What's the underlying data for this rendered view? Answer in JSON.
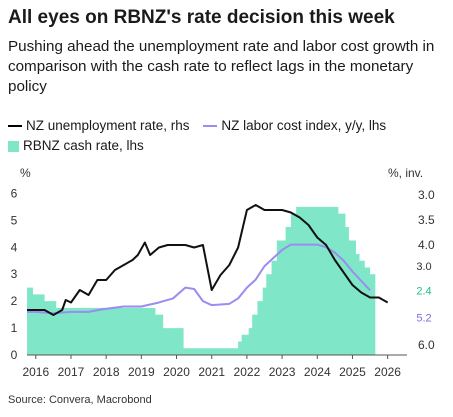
{
  "header": {
    "title": "All eyes on RBNZ's rate decision this week",
    "subtitle": "Pushing ahead the unemployment rate and labor cost growth in comparison with the cash rate to reflect lags in the monetary policy"
  },
  "axis_units": {
    "left": "%",
    "right": "%, inv."
  },
  "source": "Source: Convera, Macrobond",
  "colors": {
    "unemployment": "#111111",
    "labor_cost": "#9a8cf0",
    "cash_rate": "#7fe6c8"
  },
  "chart_data": {
    "type": "line",
    "xlim": [
      2015.75,
      2026.55
    ],
    "ylim_left": [
      0,
      6.2
    ],
    "ylim_right_inverted": [
      6.4,
      2.9
    ],
    "x_ticks": [
      2016,
      2017,
      2018,
      2019,
      2020,
      2021,
      2022,
      2023,
      2024,
      2025,
      2026
    ],
    "x_tick_labels": [
      "2016",
      "2017",
      "2018",
      "2019",
      "2020",
      "2021",
      "2022",
      "2023",
      "2024",
      "2025",
      "2026"
    ],
    "y_left_ticks": [
      0,
      1,
      2,
      3,
      4,
      5,
      6
    ],
    "y_left_tick_labels": [
      "0",
      "1",
      "2",
      "3",
      "4",
      "5",
      "6"
    ],
    "y_right_ticks": [
      3.0,
      3.5,
      4.0,
      4.5,
      5.0,
      5.5,
      6.0
    ],
    "y_right_tick_labels": [
      "3.0",
      "3.5",
      "4.0",
      "",
      "",
      "",
      "6.0"
    ],
    "annotations": [
      {
        "text": "3.0",
        "y_left": 3.3,
        "color": "#333333"
      },
      {
        "text": "2.4",
        "y_left": 2.4,
        "color": "#1fbf8f"
      },
      {
        "text": "5.2",
        "y_left": 1.4,
        "color": "#7b6fe0"
      }
    ],
    "series": [
      {
        "name": "RBNZ cash rate, lhs",
        "kind": "area",
        "axis": "left",
        "points": [
          [
            2015.75,
            2.5
          ],
          [
            2015.92,
            2.5
          ],
          [
            2015.92,
            2.25
          ],
          [
            2016.25,
            2.25
          ],
          [
            2016.25,
            2.0
          ],
          [
            2016.58,
            2.0
          ],
          [
            2016.58,
            1.75
          ],
          [
            2016.85,
            1.75
          ],
          [
            2016.85,
            1.75
          ],
          [
            2019.4,
            1.75
          ],
          [
            2019.4,
            1.5
          ],
          [
            2019.62,
            1.5
          ],
          [
            2019.62,
            1.0
          ],
          [
            2020.2,
            1.0
          ],
          [
            2020.2,
            0.25
          ],
          [
            2021.75,
            0.25
          ],
          [
            2021.75,
            0.5
          ],
          [
            2021.85,
            0.5
          ],
          [
            2021.85,
            0.75
          ],
          [
            2022.05,
            0.75
          ],
          [
            2022.05,
            1.0
          ],
          [
            2022.15,
            1.0
          ],
          [
            2022.15,
            1.5
          ],
          [
            2022.3,
            1.5
          ],
          [
            2022.3,
            2.0
          ],
          [
            2022.45,
            2.0
          ],
          [
            2022.45,
            2.5
          ],
          [
            2022.55,
            2.5
          ],
          [
            2022.55,
            3.0
          ],
          [
            2022.7,
            3.0
          ],
          [
            2022.7,
            3.5
          ],
          [
            2022.85,
            3.5
          ],
          [
            2022.85,
            4.25
          ],
          [
            2023.1,
            4.25
          ],
          [
            2023.1,
            4.75
          ],
          [
            2023.25,
            4.75
          ],
          [
            2023.25,
            5.25
          ],
          [
            2023.4,
            5.25
          ],
          [
            2023.4,
            5.5
          ],
          [
            2024.6,
            5.5
          ],
          [
            2024.6,
            5.25
          ],
          [
            2024.8,
            5.25
          ],
          [
            2024.8,
            4.75
          ],
          [
            2024.9,
            4.75
          ],
          [
            2024.9,
            4.25
          ],
          [
            2025.1,
            4.25
          ],
          [
            2025.1,
            3.75
          ],
          [
            2025.2,
            3.75
          ],
          [
            2025.2,
            3.5
          ],
          [
            2025.35,
            3.5
          ],
          [
            2025.35,
            3.25
          ],
          [
            2025.5,
            3.25
          ],
          [
            2025.5,
            3.0
          ],
          [
            2025.65,
            3.0
          ],
          [
            2025.65,
            0
          ]
        ]
      },
      {
        "name": "NZ labor cost index, y/y, lhs",
        "kind": "line",
        "axis": "left",
        "points": [
          [
            2015.75,
            1.6
          ],
          [
            2016.0,
            1.6
          ],
          [
            2016.5,
            1.55
          ],
          [
            2017.0,
            1.6
          ],
          [
            2017.5,
            1.6
          ],
          [
            2017.9,
            1.7
          ],
          [
            2018.5,
            1.8
          ],
          [
            2019.0,
            1.8
          ],
          [
            2019.5,
            1.95
          ],
          [
            2019.9,
            2.1
          ],
          [
            2020.25,
            2.5
          ],
          [
            2020.5,
            2.45
          ],
          [
            2020.75,
            2.0
          ],
          [
            2021.0,
            1.85
          ],
          [
            2021.5,
            1.9
          ],
          [
            2021.75,
            2.1
          ],
          [
            2022.0,
            2.5
          ],
          [
            2022.25,
            2.8
          ],
          [
            2022.5,
            3.3
          ],
          [
            2022.75,
            3.6
          ],
          [
            2023.0,
            3.9
          ],
          [
            2023.25,
            4.1
          ],
          [
            2023.5,
            4.1
          ],
          [
            2023.75,
            4.1
          ],
          [
            2024.0,
            4.1
          ],
          [
            2024.25,
            4.0
          ],
          [
            2024.5,
            3.8
          ],
          [
            2024.75,
            3.5
          ],
          [
            2025.0,
            3.1
          ],
          [
            2025.5,
            2.4
          ]
        ]
      },
      {
        "name": "NZ unemployment rate, rhs",
        "kind": "line",
        "axis": "right",
        "points": [
          [
            2015.75,
            5.3
          ],
          [
            2016.25,
            5.3
          ],
          [
            2016.5,
            5.4
          ],
          [
            2016.75,
            5.3
          ],
          [
            2016.85,
            5.1
          ],
          [
            2017.0,
            5.15
          ],
          [
            2017.25,
            4.9
          ],
          [
            2017.5,
            5.0
          ],
          [
            2017.75,
            4.7
          ],
          [
            2018.0,
            4.7
          ],
          [
            2018.25,
            4.5
          ],
          [
            2018.5,
            4.4
          ],
          [
            2018.75,
            4.3
          ],
          [
            2018.9,
            4.2
          ],
          [
            2019.1,
            3.95
          ],
          [
            2019.25,
            4.2
          ],
          [
            2019.5,
            4.05
          ],
          [
            2019.75,
            4.0
          ],
          [
            2020.0,
            4.0
          ],
          [
            2020.25,
            4.0
          ],
          [
            2020.5,
            4.05
          ],
          [
            2020.75,
            4.0
          ],
          [
            2021.0,
            4.9
          ],
          [
            2021.25,
            4.6
          ],
          [
            2021.5,
            4.4
          ],
          [
            2021.75,
            4.05
          ],
          [
            2022.0,
            3.3
          ],
          [
            2022.25,
            3.2
          ],
          [
            2022.5,
            3.3
          ],
          [
            2022.75,
            3.3
          ],
          [
            2023.0,
            3.3
          ],
          [
            2023.25,
            3.35
          ],
          [
            2023.5,
            3.45
          ],
          [
            2023.75,
            3.6
          ],
          [
            2024.0,
            3.85
          ],
          [
            2024.25,
            4.0
          ],
          [
            2024.5,
            4.3
          ],
          [
            2024.75,
            4.55
          ],
          [
            2025.0,
            4.8
          ],
          [
            2025.25,
            4.95
          ],
          [
            2025.5,
            5.05
          ],
          [
            2025.75,
            5.05
          ],
          [
            2026.0,
            5.15
          ]
        ]
      }
    ]
  }
}
